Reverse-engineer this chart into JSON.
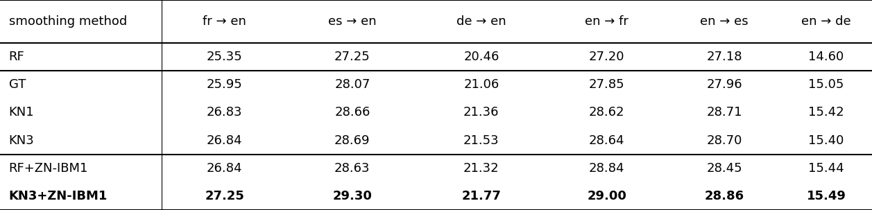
{
  "col_headers": [
    "smoothing method",
    "fr → en",
    "es → en",
    "de → en",
    "en → fr",
    "en → es",
    "en → de"
  ],
  "rows": [
    {
      "label": "RF",
      "values": [
        "25.35",
        "27.25",
        "20.46",
        "27.20",
        "27.18",
        "14.60"
      ],
      "bold": false
    },
    {
      "label": "GT",
      "values": [
        "25.95",
        "28.07",
        "21.06",
        "27.85",
        "27.96",
        "15.05"
      ],
      "bold": false
    },
    {
      "label": "KN1",
      "values": [
        "26.83",
        "28.66",
        "21.36",
        "28.62",
        "28.71",
        "15.42"
      ],
      "bold": false
    },
    {
      "label": "KN3",
      "values": [
        "26.84",
        "28.69",
        "21.53",
        "28.64",
        "28.70",
        "15.40"
      ],
      "bold": false
    },
    {
      "label": "RF+ZN-IBM1",
      "values": [
        "26.84",
        "28.63",
        "21.32",
        "28.84",
        "28.45",
        "15.44"
      ],
      "bold": false
    },
    {
      "label": "KN3+ZN-IBM1",
      "values": [
        "27.25",
        "29.30",
        "21.77",
        "29.00",
        "28.86",
        "15.49"
      ],
      "bold": true
    }
  ],
  "group_separators_after": [
    0,
    3
  ],
  "bold_last_row": true,
  "font_size": 13,
  "header_font_size": 13,
  "fig_width": 12.57,
  "fig_height": 3.03,
  "bg_color": "#ffffff",
  "line_color": "#000000"
}
